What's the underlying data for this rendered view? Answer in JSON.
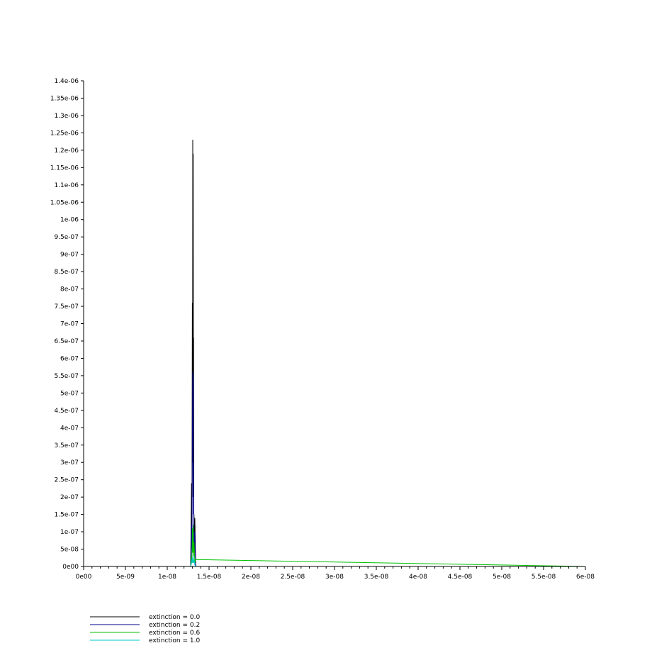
{
  "chart_data": {
    "type": "line",
    "title": "",
    "xlabel": "",
    "ylabel": "",
    "xlim": [
      0,
      6e-08
    ],
    "ylim": [
      0,
      1.4e-06
    ],
    "grid": false,
    "legend_position": "bottom-left",
    "x_ticks": [
      {
        "value": 0,
        "label": "0e00"
      },
      {
        "value": 5e-09,
        "label": "5e-09"
      },
      {
        "value": 1e-08,
        "label": "1e-08"
      },
      {
        "value": 1.5e-08,
        "label": "1.5e-08"
      },
      {
        "value": 2e-08,
        "label": "2e-08"
      },
      {
        "value": 2.5e-08,
        "label": "2.5e-08"
      },
      {
        "value": 3e-08,
        "label": "3e-08"
      },
      {
        "value": 3.5e-08,
        "label": "3.5e-08"
      },
      {
        "value": 4e-08,
        "label": "4e-08"
      },
      {
        "value": 4.5e-08,
        "label": "4.5e-08"
      },
      {
        "value": 5e-08,
        "label": "5e-08"
      },
      {
        "value": 5.5e-08,
        "label": "5.5e-08"
      },
      {
        "value": 6e-08,
        "label": "6e-08"
      }
    ],
    "y_ticks": [
      {
        "value": 0,
        "label": "0e00"
      },
      {
        "value": 5e-08,
        "label": "5e-08"
      },
      {
        "value": 1e-07,
        "label": "1e-07"
      },
      {
        "value": 1.5e-07,
        "label": "1.5e-07"
      },
      {
        "value": 2e-07,
        "label": "2e-07"
      },
      {
        "value": 2.5e-07,
        "label": "2.5e-07"
      },
      {
        "value": 3e-07,
        "label": "3e-07"
      },
      {
        "value": 3.5e-07,
        "label": "3.5e-07"
      },
      {
        "value": 4e-07,
        "label": "4e-07"
      },
      {
        "value": 4.5e-07,
        "label": "4.5e-07"
      },
      {
        "value": 5e-07,
        "label": "5e-07"
      },
      {
        "value": 5.5e-07,
        "label": "5.5e-07"
      },
      {
        "value": 6e-07,
        "label": "6e-07"
      },
      {
        "value": 6.5e-07,
        "label": "6.5e-07"
      },
      {
        "value": 7e-07,
        "label": "7e-07"
      },
      {
        "value": 7.5e-07,
        "label": "7.5e-07"
      },
      {
        "value": 8e-07,
        "label": "8e-07"
      },
      {
        "value": 8.5e-07,
        "label": "8.5e-07"
      },
      {
        "value": 9e-07,
        "label": "9e-07"
      },
      {
        "value": 9.5e-07,
        "label": "9.5e-07"
      },
      {
        "value": 1e-06,
        "label": "1e-06"
      },
      {
        "value": 1.05e-06,
        "label": "1.05e-06"
      },
      {
        "value": 1.1e-06,
        "label": "1.1e-06"
      },
      {
        "value": 1.15e-06,
        "label": "1.15e-06"
      },
      {
        "value": 1.2e-06,
        "label": "1.2e-06"
      },
      {
        "value": 1.25e-06,
        "label": "1.25e-06"
      },
      {
        "value": 1.3e-06,
        "label": "1.3e-06"
      },
      {
        "value": 1.35e-06,
        "label": "1.35e-06"
      },
      {
        "value": 1.4e-06,
        "label": "1.4e-06"
      }
    ],
    "series": [
      {
        "name": "extinction = 0.0",
        "color": "#000000",
        "x": [
          0,
          1.28e-08,
          1.29e-08,
          1.295e-08,
          1.3e-08,
          1.303e-08,
          1.305e-08,
          1.308e-08,
          1.31e-08,
          1.313e-08,
          1.315e-08,
          1.318e-08,
          1.32e-08,
          1.325e-08,
          1.33e-08,
          1.34e-08,
          6e-08
        ],
        "y": [
          0,
          0,
          2.4e-07,
          6e-08,
          7.6e-07,
          3e-07,
          1.23e-06,
          2e-07,
          1.19e-06,
          4e-07,
          6.6e-07,
          1e-07,
          1.5e-07,
          3e-08,
          1.4e-07,
          0,
          0
        ]
      },
      {
        "name": "extinction = 0.2",
        "color": "#00008b",
        "x": [
          0,
          1.28e-08,
          1.29e-08,
          1.295e-08,
          1.3e-08,
          1.305e-08,
          1.31e-08,
          1.313e-08,
          1.315e-08,
          1.32e-08,
          1.33e-08,
          1.34e-08,
          6e-08
        ],
        "y": [
          0,
          0,
          1.2e-07,
          2e-08,
          3.5e-07,
          5.6e-07,
          5.4e-07,
          1.5e-07,
          3e-07,
          5e-08,
          1e-07,
          0,
          0
        ]
      },
      {
        "name": "extinction = 0.6",
        "color": "#00c000",
        "x": [
          0,
          1.28e-08,
          1.29e-08,
          1.295e-08,
          1.3e-08,
          1.305e-08,
          1.31e-08,
          1.315e-08,
          1.32e-08,
          1.33e-08,
          1.34e-08,
          6e-08
        ],
        "y": [
          0,
          0,
          3e-08,
          1e-08,
          1.1e-07,
          4e-08,
          1.2e-07,
          3e-08,
          7e-08,
          1e-08,
          2e-08,
          0
        ]
      },
      {
        "name": "extinction = 1.0",
        "color": "#00c8c8",
        "x": [
          0,
          1.28e-08,
          1.29e-08,
          1.3e-08,
          1.305e-08,
          1.31e-08,
          1.315e-08,
          1.32e-08,
          1.33e-08,
          1.34e-08,
          6e-08
        ],
        "y": [
          0,
          0,
          1e-08,
          2.5e-08,
          1e-08,
          3e-08,
          1e-08,
          2e-08,
          5e-09,
          0,
          0
        ]
      }
    ]
  }
}
